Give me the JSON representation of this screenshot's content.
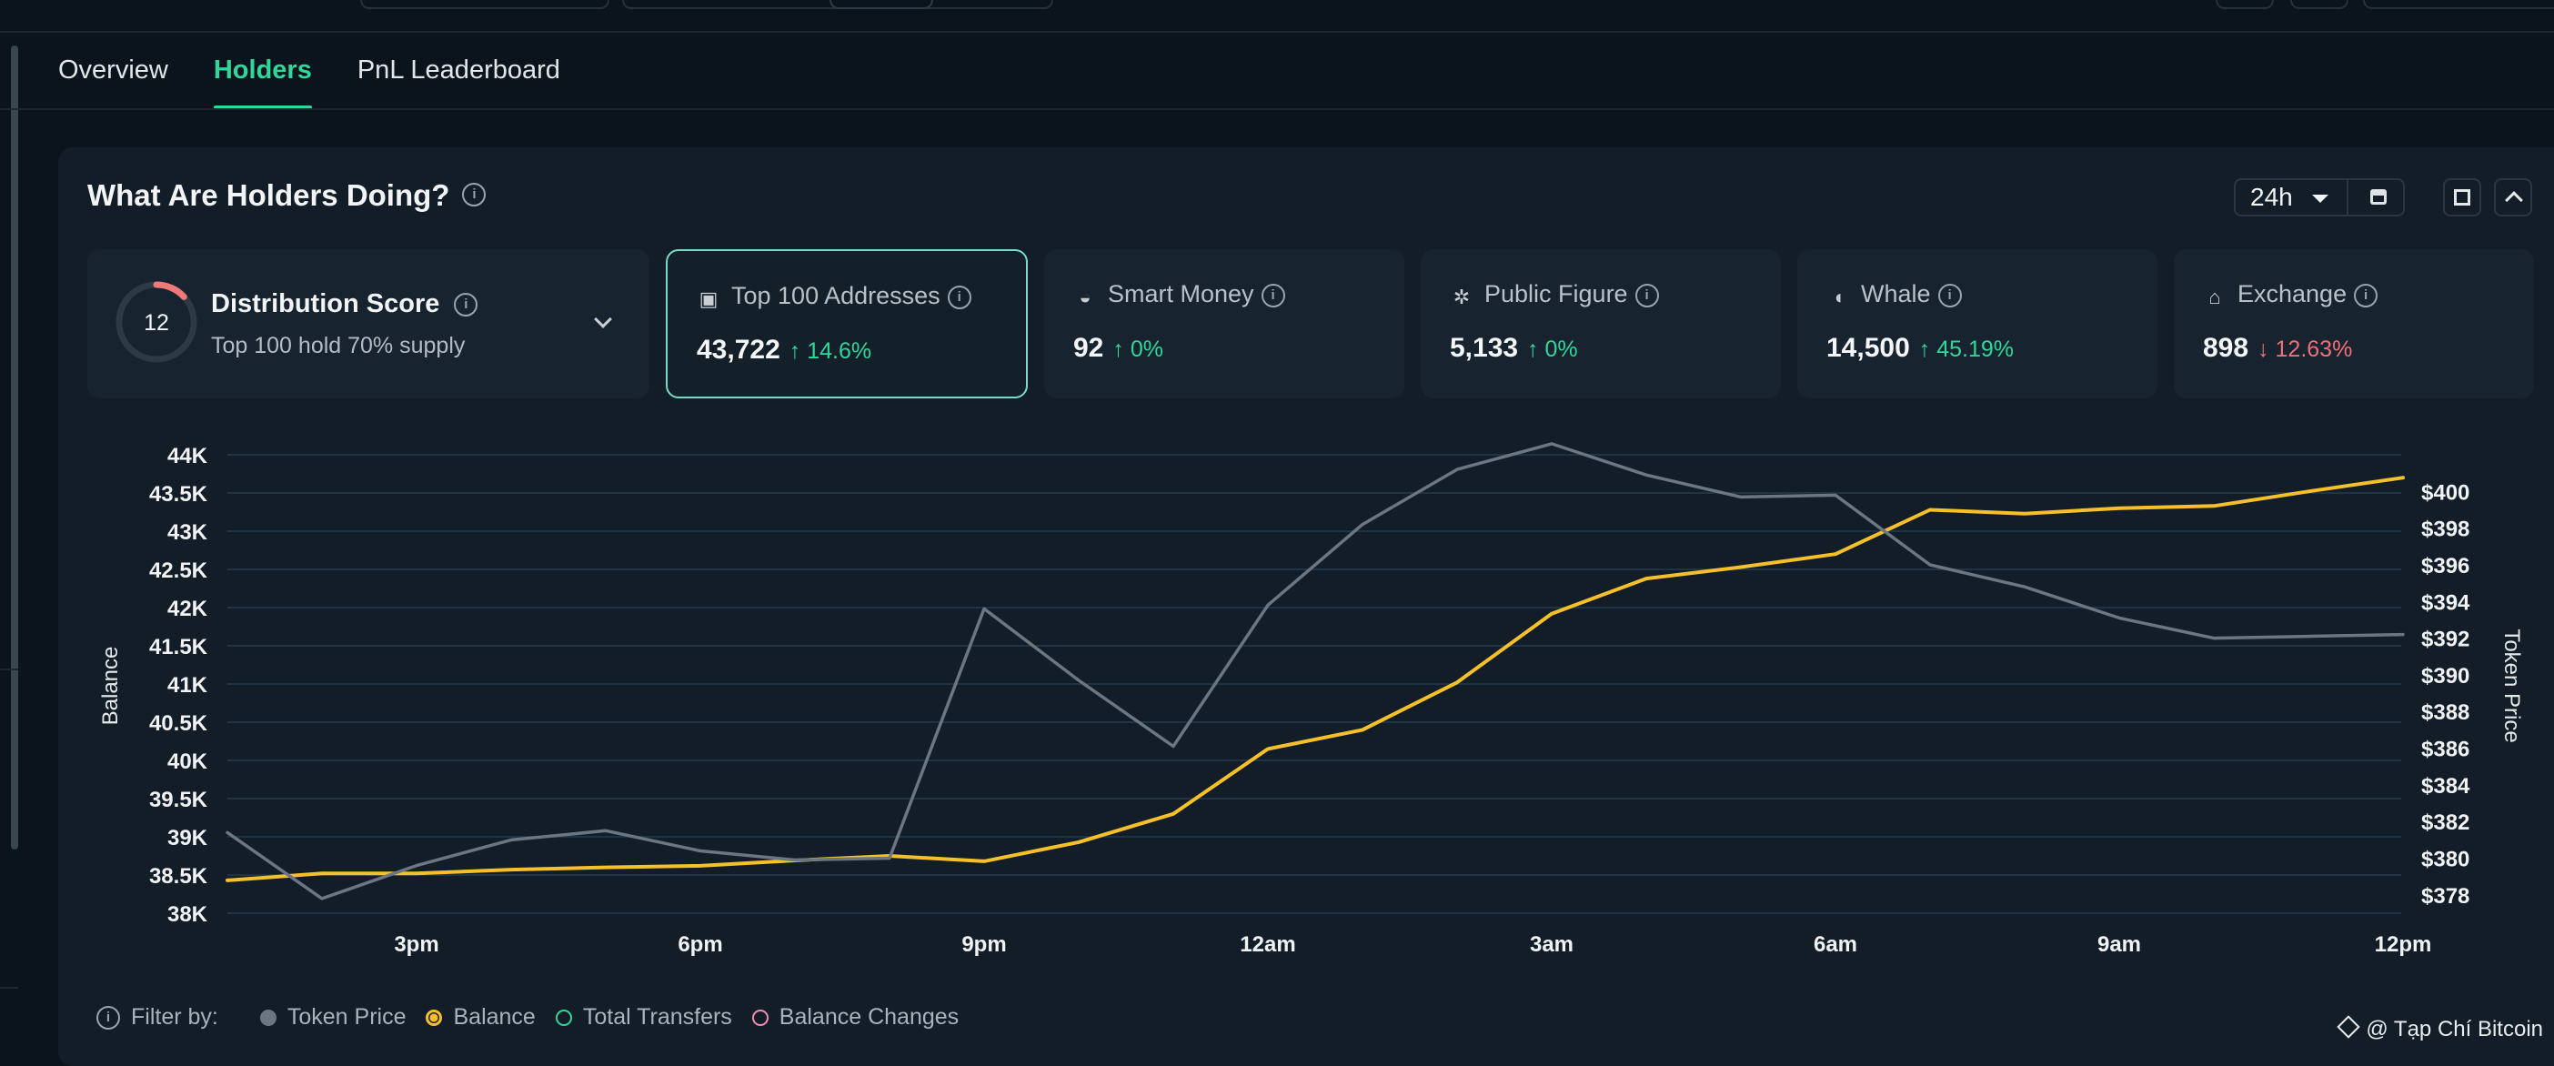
{
  "tabs": [
    {
      "label": "Overview",
      "active": false
    },
    {
      "label": "Holders",
      "active": true
    },
    {
      "label": "PnL Leaderboard",
      "active": false
    }
  ],
  "panel": {
    "title": "What Are Holders Doing?",
    "time_range": "24h"
  },
  "distribution": {
    "title": "Distribution Score",
    "score": "12",
    "subtitle": "Top 100 hold 70% supply"
  },
  "cards": [
    {
      "title": "Top 100 Addresses",
      "icon": "wallet-icon",
      "value": "43,722",
      "change": "14.6%",
      "direction": "up",
      "selected": true
    },
    {
      "title": "Smart Money",
      "icon": "smart-money-icon",
      "value": "92",
      "change": "0%",
      "direction": "up",
      "selected": false
    },
    {
      "title": "Public Figure",
      "icon": "public-figure-icon",
      "value": "5,133",
      "change": "0%",
      "direction": "up",
      "selected": false
    },
    {
      "title": "Whale",
      "icon": "whale-icon",
      "value": "14,500",
      "change": "45.19%",
      "direction": "up",
      "selected": false
    },
    {
      "title": "Exchange",
      "icon": "exchange-icon",
      "value": "898",
      "change": "12.63%",
      "direction": "down",
      "selected": false
    }
  ],
  "legend": {
    "filter_label": "Filter by:",
    "items": [
      {
        "label": "Token Price",
        "color": "#6b7680",
        "style": "filled"
      },
      {
        "label": "Balance",
        "color": "#f6c02a",
        "style": "ring-dot"
      },
      {
        "label": "Total Transfers",
        "color": "#2fd79a",
        "style": "ring"
      },
      {
        "label": "Balance Changes",
        "color": "#f28cb4",
        "style": "ring"
      }
    ]
  },
  "watermark": "@ Tạp Chí Bitcoin",
  "colors": {
    "accent": "#2fd79a",
    "balance_line": "#f6c02a",
    "price_line": "#6b7680",
    "down": "#f0707a"
  },
  "chart_data": {
    "type": "line",
    "xlabel": "",
    "ylabel_left": "Balance",
    "ylabel_right": "Token Price",
    "x_ticks": [
      "3pm",
      "6pm",
      "9pm",
      "12am",
      "3am",
      "6am",
      "9am",
      "12pm"
    ],
    "y_left_ticks": [
      "38K",
      "38.5K",
      "39K",
      "39.5K",
      "40K",
      "40.5K",
      "41K",
      "41.5K",
      "42K",
      "42.5K",
      "43K",
      "43.5K",
      "44K"
    ],
    "y_right_ticks": [
      "$378",
      "$380",
      "$382",
      "$384",
      "$386",
      "$388",
      "$390",
      "$392",
      "$394",
      "$396",
      "$398",
      "$400"
    ],
    "ylim_left": [
      38000,
      44000
    ],
    "ylim_right": [
      377,
      402
    ],
    "x_hours": [
      0,
      1,
      2,
      3,
      4,
      5,
      6,
      7,
      8,
      9,
      10,
      11,
      12,
      13,
      14,
      15,
      16,
      17,
      18,
      19,
      20,
      21,
      22,
      23
    ],
    "x_start_hour": 13,
    "grid": true,
    "series": [
      {
        "name": "Balance",
        "axis": "left",
        "color": "#f6c02a",
        "values": [
          38430,
          38520,
          38520,
          38570,
          38600,
          38620,
          38690,
          38750,
          38680,
          38930,
          39300,
          40150,
          40400,
          41020,
          41920,
          42380,
          42530,
          42700,
          43280,
          43230,
          43300,
          43330,
          43520,
          43700
        ]
      },
      {
        "name": "Token Price",
        "axis": "right",
        "color": "#6b7680",
        "values": [
          381.4,
          377.8,
          379.6,
          381.0,
          381.5,
          380.4,
          379.9,
          380.0,
          393.6,
          389.7,
          386.1,
          393.8,
          398.2,
          401.2,
          402.6,
          400.9,
          399.7,
          399.8,
          396.0,
          394.8,
          393.1,
          392.0,
          392.1,
          392.2
        ]
      }
    ]
  }
}
